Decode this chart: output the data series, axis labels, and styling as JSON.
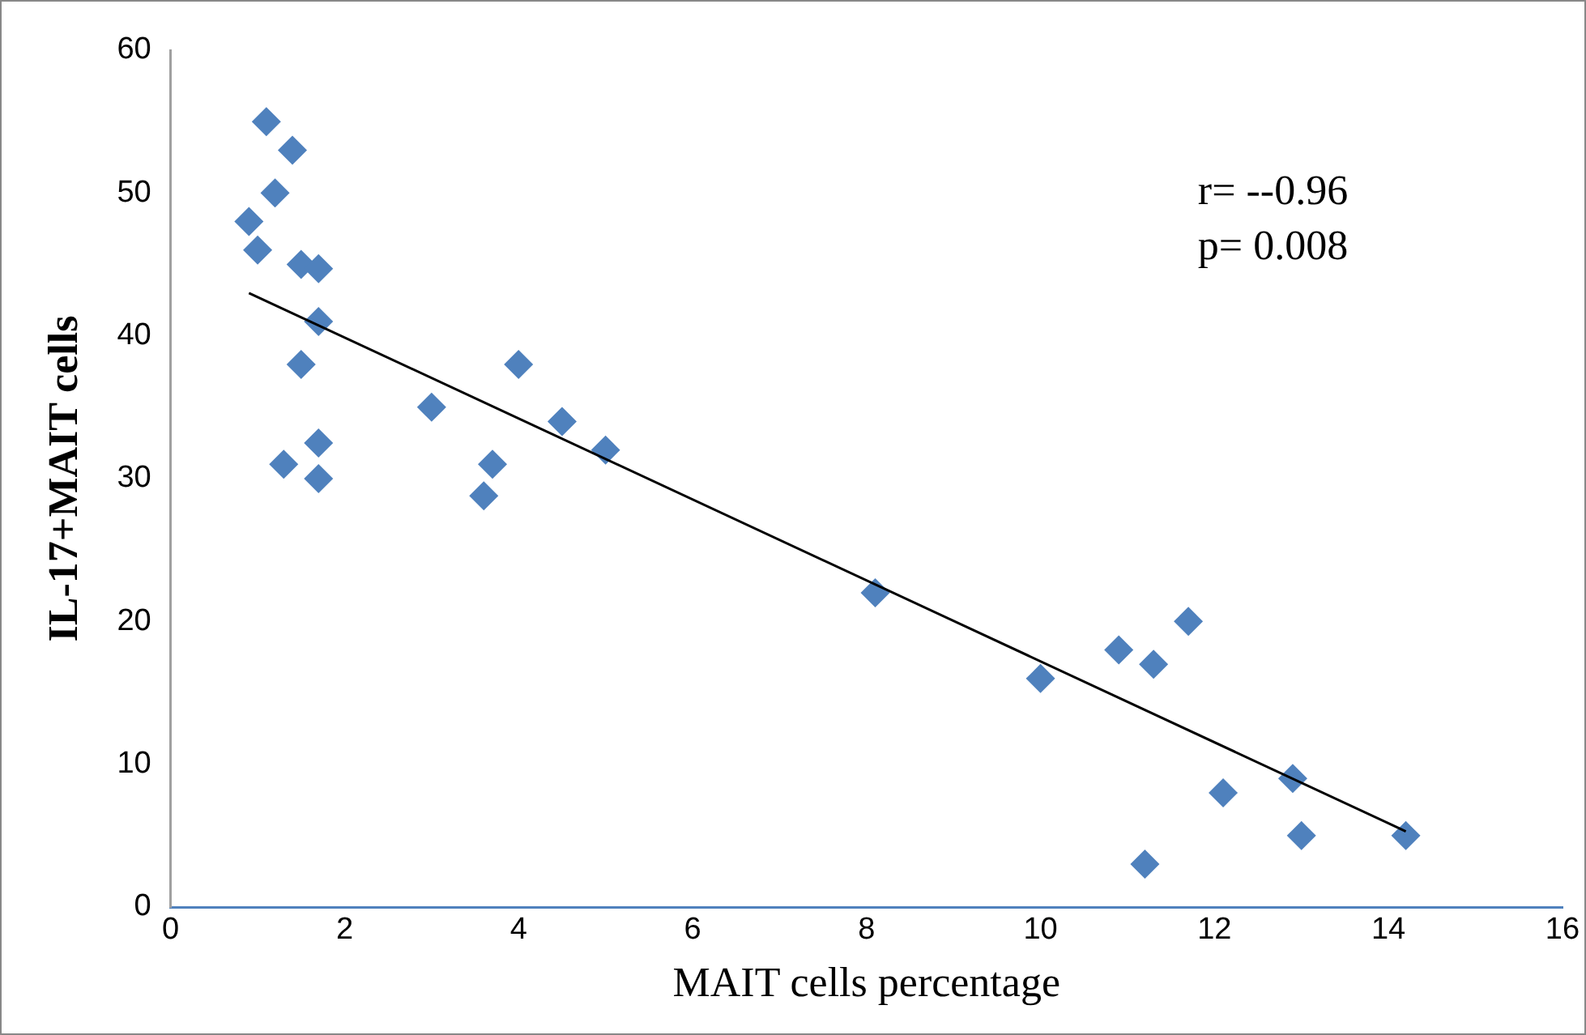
{
  "chart_data": {
    "type": "scatter",
    "xlabel": "MAIT cells percentage",
    "ylabel": "IL-17+MAIT cells",
    "xlim": [
      0,
      16
    ],
    "xticks": [
      0,
      2,
      4,
      6,
      8,
      10,
      12,
      14,
      16
    ],
    "ylim": [
      0,
      60
    ],
    "yticks": [
      0,
      10,
      20,
      30,
      40,
      50,
      60
    ],
    "grid": false,
    "legend": false,
    "marker": "diamond",
    "annotations": [
      "r= --0.96",
      "p= 0.008"
    ],
    "series": [
      {
        "color": "#4f81bd",
        "x": [
          0.9,
          1.0,
          1.1,
          1.2,
          1.4,
          1.5,
          1.7,
          1.7,
          1.5,
          1.3,
          1.7,
          1.7,
          3.0,
          3.6,
          3.7,
          4.0,
          4.5,
          5.0,
          8.1,
          10.0,
          10.9,
          11.3,
          11.7,
          11.2,
          12.1,
          12.9,
          13.0,
          14.2
        ],
        "values": [
          48,
          46,
          55,
          50,
          53,
          45,
          44.7,
          41,
          38,
          31,
          32.5,
          30,
          35,
          28.8,
          31,
          38,
          34,
          32,
          22,
          16,
          18,
          17,
          20,
          3,
          8,
          9,
          5,
          5
        ]
      },
      {
        "type": "line",
        "marker": "none",
        "color": "#000000",
        "x": [
          0.9,
          14.2
        ],
        "values": [
          43,
          5.3
        ]
      }
    ]
  }
}
